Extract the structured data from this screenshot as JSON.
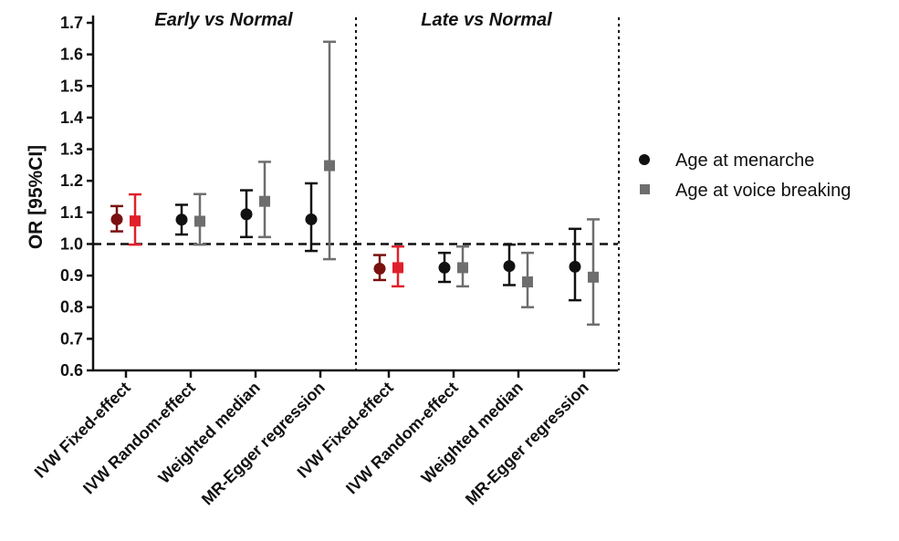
{
  "chart_data": {
    "type": "scatter",
    "subtype": "forest-plot-with-error-bars",
    "ylabel": "OR [95%CI]",
    "ylim": [
      0.6,
      1.7
    ],
    "yticks": [
      "0.6",
      "0.7",
      "0.8",
      "0.9",
      "1.0",
      "1.1",
      "1.2",
      "1.3",
      "1.4",
      "1.5",
      "1.6",
      "1.7"
    ],
    "reference_line": 1.0,
    "panels": [
      {
        "title": "Early vs Normal"
      },
      {
        "title": "Late vs Normal"
      }
    ],
    "categories": [
      "IVW Fixed-effect",
      "IVW Random-effect",
      "Weighted median",
      "MR-Egger regression",
      "IVW Fixed-effect",
      "IVW Random-effect",
      "Weighted median",
      "MR-Egger regression"
    ],
    "series": [
      {
        "name": "Age at menarche",
        "marker": "circle",
        "color": "#111111",
        "values": [
          1.078,
          1.077,
          1.094,
          1.078,
          0.922,
          0.925,
          0.93,
          0.928
        ],
        "lower": [
          1.04,
          1.03,
          1.022,
          0.978,
          0.886,
          0.88,
          0.87,
          0.822
        ],
        "upper": [
          1.12,
          1.124,
          1.17,
          1.192,
          0.965,
          0.972,
          0.998,
          1.048
        ],
        "point_colors": [
          "#7a1010",
          "#111111",
          "#111111",
          "#111111",
          "#7a1010",
          "#111111",
          "#111111",
          "#111111"
        ]
      },
      {
        "name": "Age at voice breaking",
        "marker": "square",
        "color": "#6e6e6e",
        "values": [
          1.073,
          1.072,
          1.135,
          1.248,
          0.925,
          0.925,
          0.88,
          0.895
        ],
        "lower": [
          0.998,
          0.998,
          1.022,
          0.952,
          0.866,
          0.866,
          0.8,
          0.745
        ],
        "upper": [
          1.157,
          1.158,
          1.26,
          1.64,
          0.992,
          0.992,
          0.972,
          1.078
        ],
        "point_colors": [
          "#e0202a",
          "#6e6e6e",
          "#6e6e6e",
          "#6e6e6e",
          "#e0202a",
          "#6e6e6e",
          "#6e6e6e",
          "#6e6e6e"
        ]
      }
    ],
    "legend_position": "right"
  }
}
